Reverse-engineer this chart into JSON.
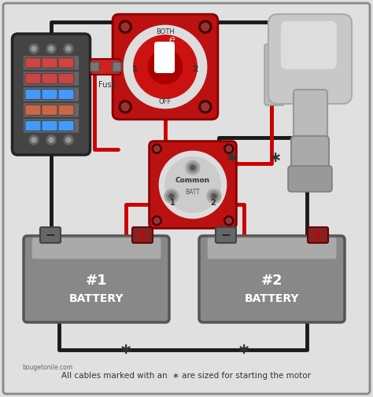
{
  "background_color": "#e0e0e0",
  "border_color": "#555555",
  "wire_red": "#cc0000",
  "wire_black": "#1a1a1a",
  "footnote_site": "bougetonile.com",
  "footnote_text": "All cables marked with an  ∗ are sized for starting the motor",
  "fuse_label": "Fuse",
  "isolator_label_common": "Common",
  "isolator_label_batt": "BATT",
  "isolator_label_1": "1",
  "isolator_label_2": "2",
  "battery1_label1": "#1",
  "battery1_label2": "BATTERY",
  "battery2_label1": "#2",
  "battery2_label2": "BATTERY",
  "switch_label_off": "OFF",
  "switch_label_both": "BOTH",
  "switch_label_1": "1",
  "switch_label_2": "2"
}
